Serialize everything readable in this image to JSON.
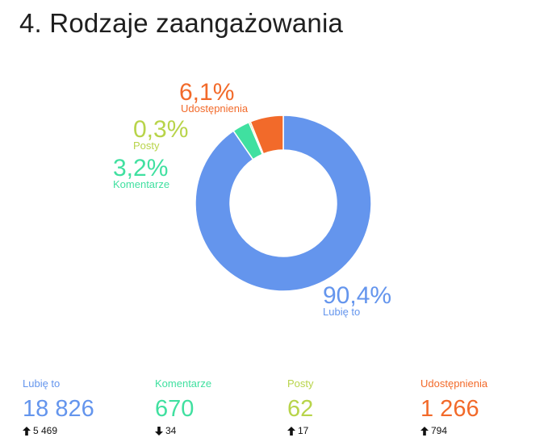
{
  "page": {
    "title": "4. Rodzaje zaangażowania"
  },
  "colors": {
    "likes": "#6495ED",
    "comments": "#40E0A0",
    "posts": "#B8D44A",
    "shares": "#F26A2A",
    "separator": "#ffffff"
  },
  "chart_data": {
    "type": "pie",
    "variant": "donut",
    "title": "",
    "series": [
      {
        "name": "Lubię to",
        "value": 90.4,
        "label": "90,4%",
        "color_key": "likes"
      },
      {
        "name": "Komentarze",
        "value": 3.2,
        "label": "3,2%",
        "color_key": "comments"
      },
      {
        "name": "Posty",
        "value": 0.3,
        "label": "0,3%",
        "color_key": "posts"
      },
      {
        "name": "Udostępnienia",
        "value": 6.1,
        "label": "6,1%",
        "color_key": "shares"
      }
    ]
  },
  "stats": [
    {
      "label": "Lubię to",
      "value": "18 826",
      "delta": "5 469",
      "direction": "up",
      "color_key": "likes"
    },
    {
      "label": "Komentarze",
      "value": "670",
      "delta": "34",
      "direction": "down",
      "color_key": "comments"
    },
    {
      "label": "Posty",
      "value": "62",
      "delta": "17",
      "direction": "up",
      "color_key": "posts"
    },
    {
      "label": "Udostępnienia",
      "value": "1 266",
      "delta": "794",
      "direction": "up",
      "color_key": "shares"
    }
  ]
}
